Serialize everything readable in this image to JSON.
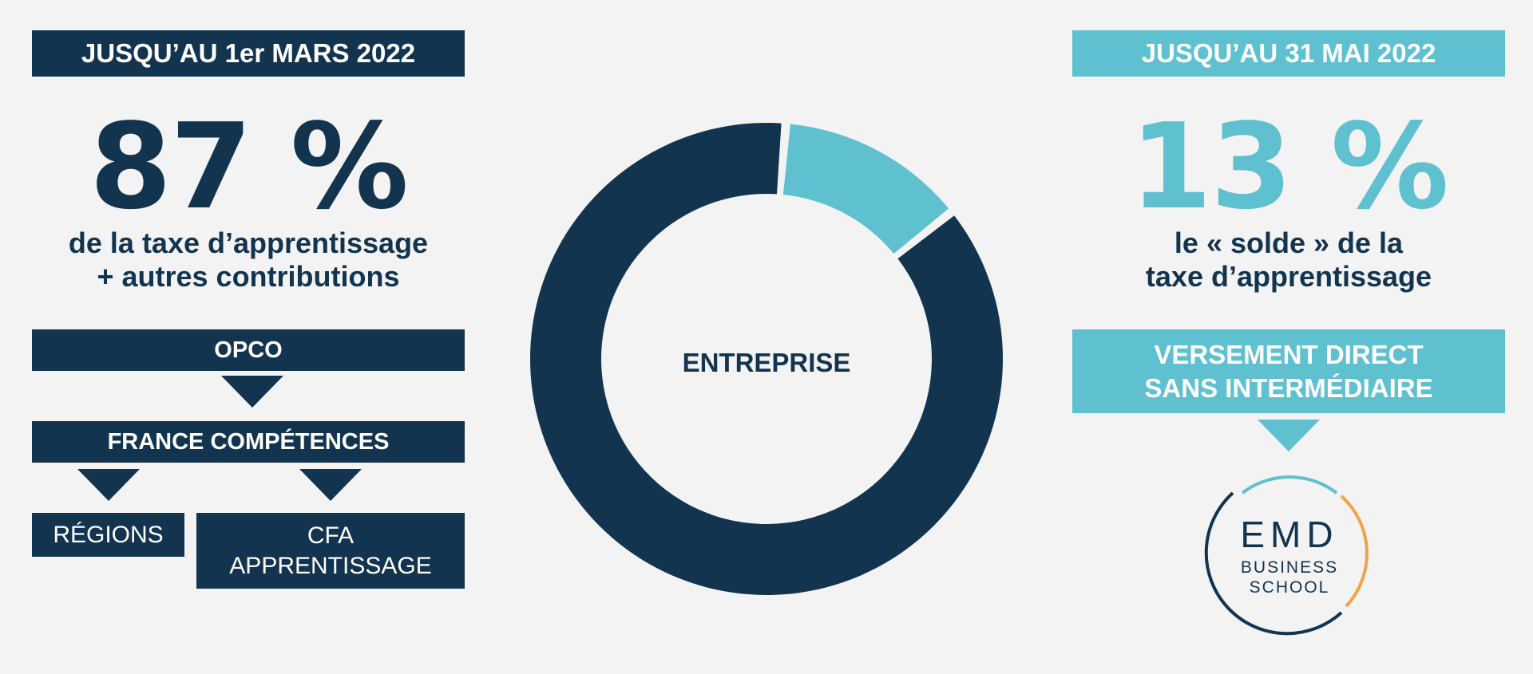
{
  "left": {
    "header": "JUSQU’AU 1er MARS 2022",
    "percent": "87 %",
    "desc_line1": "de la taxe d’apprentissage",
    "desc_line2": "+ autres contributions",
    "box_opco": "OPCO",
    "box_france": "FRANCE COMPÉTENCES",
    "box_regions": "RÉGIONS",
    "box_cfa_line1": "CFA",
    "box_cfa_line2": "APPRENTISSAGE"
  },
  "right": {
    "header": "JUSQU’AU 31 MAI 2022",
    "percent": "13 %",
    "desc_line1": "le « solde » de la",
    "desc_line2": "taxe d’apprentissage",
    "box_line1": "VERSEMENT DIRECT",
    "box_line2": "SANS INTERMÉDIAIRE"
  },
  "center": {
    "label": "ENTREPRISE"
  },
  "logo": {
    "line1": "EMD",
    "line2": "BUSINESS",
    "line3": "SCHOOL"
  },
  "chart_data": {
    "type": "pie",
    "style": "donut",
    "categories": [
      "87 %",
      "13 %"
    ],
    "values": [
      87,
      13
    ],
    "colors": [
      "#13344f",
      "#5fc0cf"
    ]
  },
  "colors": {
    "navy": "#13344f",
    "teal": "#5fc0cf",
    "orange": "#f0a444",
    "background": "#f3f3f3"
  }
}
